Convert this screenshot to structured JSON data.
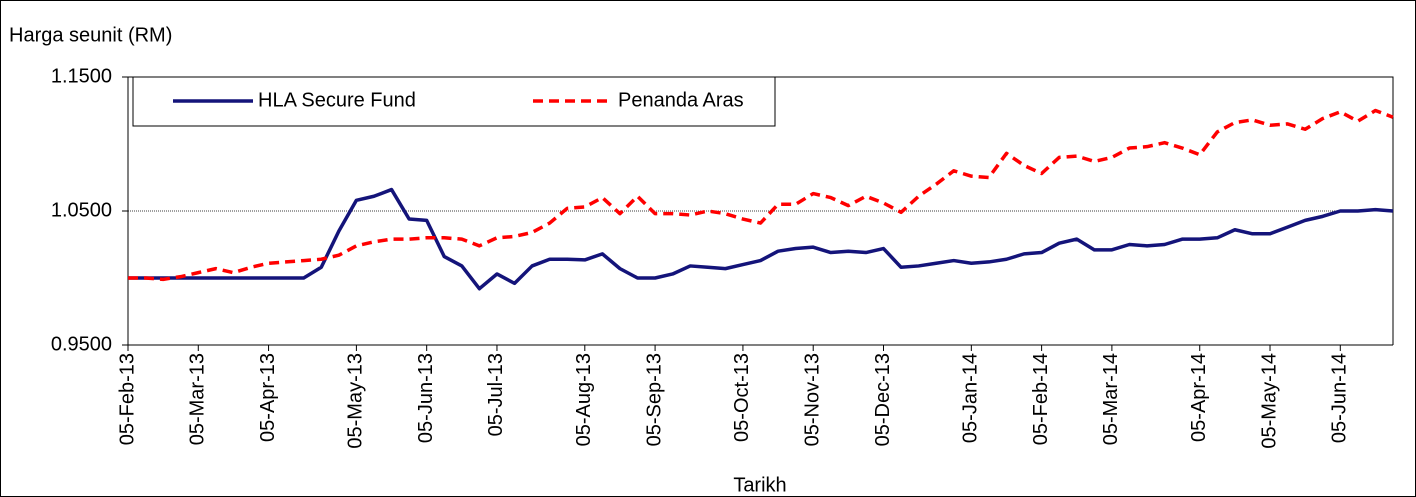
{
  "chart_data": {
    "type": "line",
    "y_label": "Harga seunit (RM)",
    "x_label": "Tarikh",
    "categories": [
      "05-Feb-13",
      null,
      null,
      null,
      "05-Mar-13",
      null,
      null,
      null,
      "05-Apr-13",
      null,
      null,
      null,
      null,
      "05-May-13",
      null,
      null,
      null,
      "05-Jun-13",
      null,
      null,
      null,
      "05-Jul-13",
      null,
      null,
      null,
      null,
      "05-Aug-13",
      null,
      null,
      null,
      "05-Sep-13",
      null,
      null,
      null,
      null,
      "05-Oct-13",
      null,
      null,
      null,
      "05-Nov-13",
      null,
      null,
      null,
      "05-Dec-13",
      null,
      null,
      null,
      null,
      "05-Jan-14",
      null,
      null,
      null,
      "05-Feb-14",
      null,
      null,
      null,
      "05-Mar-14",
      null,
      null,
      null,
      null,
      "05-Apr-14",
      null,
      null,
      null,
      "05-May-14",
      null,
      null,
      null,
      "05-Jun-14",
      null,
      null,
      null
    ],
    "series": [
      {
        "name": "HLA Secure Fund",
        "color": "#14147a",
        "dashed": false,
        "values": [
          1.0,
          1.0,
          1.0,
          1.0,
          1.0,
          1.0,
          1.0,
          1.0,
          1.0,
          1.0,
          1.0,
          1.008,
          1.035,
          1.058,
          1.061,
          1.066,
          1.044,
          1.043,
          1.016,
          1.009,
          0.992,
          1.003,
          0.996,
          1.009,
          1.014,
          1.014,
          1.0135,
          1.018,
          1.007,
          1.0,
          1.0,
          1.003,
          1.009,
          1.008,
          1.007,
          1.01,
          1.013,
          1.02,
          1.022,
          1.023,
          1.019,
          1.02,
          1.019,
          1.022,
          1.008,
          1.009,
          1.011,
          1.013,
          1.011,
          1.012,
          1.014,
          1.018,
          1.019,
          1.026,
          1.029,
          1.021,
          1.021,
          1.025,
          1.024,
          1.025,
          1.029,
          1.029,
          1.03,
          1.036,
          1.033,
          1.033,
          1.038,
          1.043,
          1.046,
          1.05,
          1.05,
          1.051,
          1.05
        ]
      },
      {
        "name": "Penanda Aras",
        "color": "#ff0000",
        "dashed": true,
        "values": [
          1.0,
          1.0,
          0.999,
          1.001,
          1.004,
          1.007,
          1.004,
          1.008,
          1.011,
          1.012,
          1.013,
          1.014,
          1.017,
          1.024,
          1.027,
          1.029,
          1.029,
          1.03,
          1.03,
          1.029,
          1.024,
          1.03,
          1.031,
          1.034,
          1.041,
          1.052,
          1.053,
          1.06,
          1.048,
          1.061,
          1.048,
          1.048,
          1.047,
          1.05,
          1.048,
          1.044,
          1.041,
          1.055,
          1.055,
          1.063,
          1.06,
          1.054,
          1.061,
          1.056,
          1.049,
          1.061,
          1.07,
          1.08,
          1.076,
          1.075,
          1.093,
          1.084,
          1.078,
          1.09,
          1.091,
          1.087,
          1.09,
          1.097,
          1.098,
          1.101,
          1.097,
          1.092,
          1.109,
          1.116,
          1.118,
          1.114,
          1.115,
          1.111,
          1.119,
          1.124,
          1.117,
          1.125,
          1.12
        ]
      }
    ],
    "ylim": [
      0.95,
      1.15
    ],
    "yticks": [
      {
        "value": 0.95,
        "label": "0.9500"
      },
      {
        "value": 1.05,
        "label": "1.0500"
      },
      {
        "value": 1.15,
        "label": "1.1500"
      }
    ],
    "grid": true,
    "legend": "top-left"
  }
}
